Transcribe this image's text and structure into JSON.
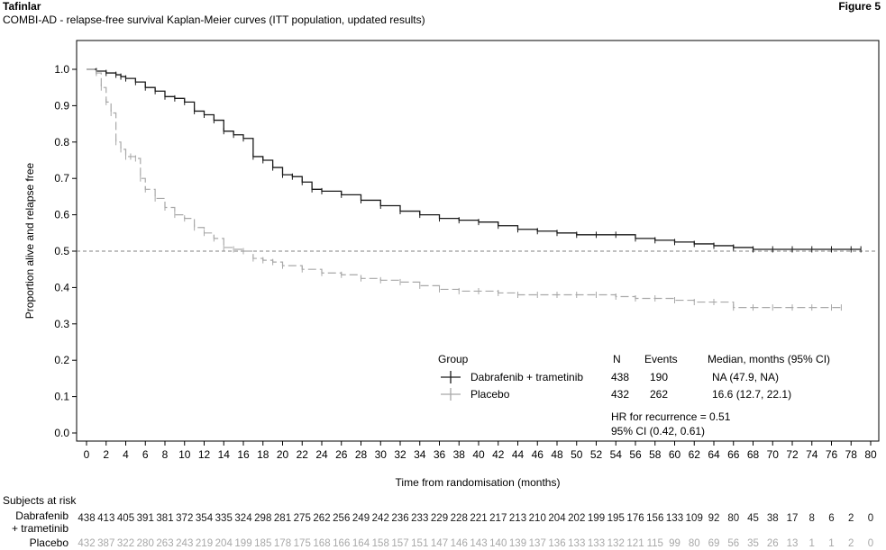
{
  "header": {
    "left_title": "Tafinlar",
    "right_label": "Figure 5",
    "chart_title": "COMBI-AD - relapse-free survival Kaplan-Meier curves (ITT population, updated results)"
  },
  "colors": {
    "dabrafenib": "#1a1a1a",
    "placebo": "#a8a8a8",
    "reference_line": "#808080",
    "axes": "#000000"
  },
  "chart_data": {
    "type": "line",
    "xlabel": "Time from randomisation (months)",
    "ylabel": "Proportion alive and relapse free",
    "xlim": [
      0,
      80
    ],
    "ylim": [
      0,
      1.0
    ],
    "xticks": [
      0,
      2,
      4,
      6,
      8,
      10,
      12,
      14,
      16,
      18,
      20,
      22,
      24,
      26,
      28,
      30,
      32,
      34,
      36,
      38,
      40,
      42,
      44,
      46,
      48,
      50,
      52,
      54,
      56,
      58,
      60,
      62,
      64,
      66,
      68,
      70,
      72,
      74,
      76,
      78,
      80
    ],
    "yticks": [
      "0.0",
      "0.1",
      "0.2",
      "0.3",
      "0.4",
      "0.5",
      "0.6",
      "0.7",
      "0.8",
      "0.9",
      "1.0"
    ],
    "reference_line_y": 0.5,
    "grid": false,
    "series": [
      {
        "name": "Dabrafenib + trametinib",
        "style": "solid",
        "x": [
          0,
          1,
          2,
          3,
          3.5,
          4,
          5,
          6,
          7,
          8,
          9,
          10,
          11,
          12,
          13,
          14,
          15,
          16,
          17,
          18,
          19,
          20,
          21,
          22,
          23,
          24,
          26,
          28,
          30,
          32,
          34,
          36,
          38,
          40,
          42,
          44,
          46,
          48,
          50,
          52,
          54,
          56,
          58,
          60,
          62,
          64,
          66,
          68,
          70,
          72,
          74,
          76,
          78,
          79
        ],
        "y": [
          1.0,
          0.995,
          0.99,
          0.985,
          0.98,
          0.975,
          0.965,
          0.95,
          0.94,
          0.925,
          0.92,
          0.91,
          0.885,
          0.875,
          0.86,
          0.83,
          0.82,
          0.81,
          0.76,
          0.75,
          0.73,
          0.71,
          0.705,
          0.69,
          0.67,
          0.665,
          0.655,
          0.64,
          0.625,
          0.61,
          0.6,
          0.59,
          0.585,
          0.58,
          0.57,
          0.56,
          0.555,
          0.55,
          0.545,
          0.545,
          0.545,
          0.535,
          0.53,
          0.525,
          0.52,
          0.515,
          0.51,
          0.505,
          0.505,
          0.505,
          0.505,
          0.505,
          0.505,
          0.505
        ]
      },
      {
        "name": "Placebo",
        "style": "dashed",
        "x": [
          0,
          1,
          1.5,
          2,
          2.5,
          3,
          3.5,
          4,
          4.5,
          5,
          5.5,
          6,
          7,
          8,
          9,
          10,
          11,
          12,
          13,
          14,
          15,
          16,
          17,
          18,
          19,
          20,
          22,
          24,
          26,
          28,
          30,
          32,
          34,
          36,
          38,
          40,
          42,
          44,
          46,
          48,
          50,
          52,
          54,
          56,
          58,
          60,
          62,
          64,
          66,
          68,
          70,
          72,
          74,
          76,
          77
        ],
        "y": [
          1.0,
          0.99,
          0.95,
          0.91,
          0.88,
          0.8,
          0.78,
          0.76,
          0.76,
          0.755,
          0.7,
          0.67,
          0.645,
          0.62,
          0.6,
          0.59,
          0.565,
          0.55,
          0.535,
          0.51,
          0.505,
          0.5,
          0.48,
          0.475,
          0.47,
          0.46,
          0.45,
          0.44,
          0.435,
          0.425,
          0.42,
          0.415,
          0.405,
          0.395,
          0.39,
          0.39,
          0.385,
          0.38,
          0.38,
          0.38,
          0.38,
          0.38,
          0.375,
          0.37,
          0.37,
          0.365,
          0.36,
          0.36,
          0.345,
          0.345,
          0.345,
          0.345,
          0.345,
          0.345,
          0.345
        ]
      }
    ],
    "legend": {
      "position": "bottom-right",
      "header_group": "Group",
      "header_n": "N",
      "header_events": "Events",
      "header_median": "Median, months (95% CI)",
      "rows": [
        {
          "label": "Dabrafenib + trametinib",
          "n": "438",
          "events": "190",
          "median": "NA (47.9, NA)"
        },
        {
          "label": "Placebo",
          "n": "432",
          "events": "262",
          "median": "16.6 (12.7, 22.1)"
        }
      ]
    },
    "annotations": {
      "hr": "HR for recurrence = 0.51",
      "ci": "95% CI (0.42, 0.61)"
    }
  },
  "risk_table": {
    "title": "Subjects at risk",
    "rows": [
      {
        "label_line1": "Dabrafenib",
        "label_line2": "+ trametinib",
        "values": [
          "438",
          "413",
          "405",
          "391",
          "381",
          "372",
          "354",
          "335",
          "324",
          "298",
          "281",
          "275",
          "262",
          "256",
          "249",
          "242",
          "236",
          "233",
          "229",
          "228",
          "221",
          "217",
          "213",
          "210",
          "204",
          "202",
          "199",
          "195",
          "176",
          "156",
          "133",
          "109",
          "92",
          "80",
          "45",
          "38",
          "17",
          "8",
          "6",
          "2",
          "0"
        ]
      },
      {
        "label_line1": "Placebo",
        "values": [
          "432",
          "387",
          "322",
          "280",
          "263",
          "243",
          "219",
          "204",
          "199",
          "185",
          "178",
          "175",
          "168",
          "166",
          "164",
          "158",
          "157",
          "151",
          "147",
          "146",
          "143",
          "140",
          "139",
          "137",
          "136",
          "133",
          "133",
          "132",
          "121",
          "115",
          "99",
          "80",
          "69",
          "56",
          "35",
          "26",
          "13",
          "1",
          "1",
          "2",
          "0"
        ]
      }
    ]
  }
}
